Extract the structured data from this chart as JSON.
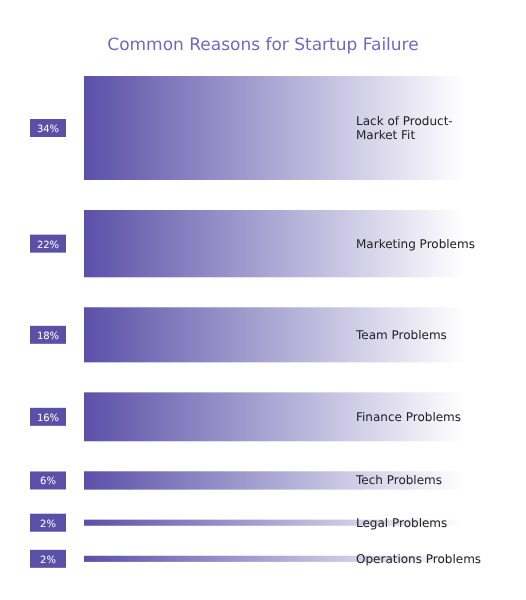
{
  "chart_data": {
    "type": "other",
    "title": "Common Reasons for Startup Failure",
    "categories": [
      "Lack of Product-Market Fit",
      "Marketing Problems",
      "Team Problems",
      "Finance Problems",
      "Tech Problems",
      "Legal Problems",
      "Operations Problems"
    ],
    "values": [
      34,
      22,
      18,
      16,
      6,
      2,
      2
    ],
    "value_labels": [
      "34%",
      "22%",
      "18%",
      "16%",
      "6%",
      "2%",
      "2%"
    ],
    "color": "#5b50a8"
  }
}
